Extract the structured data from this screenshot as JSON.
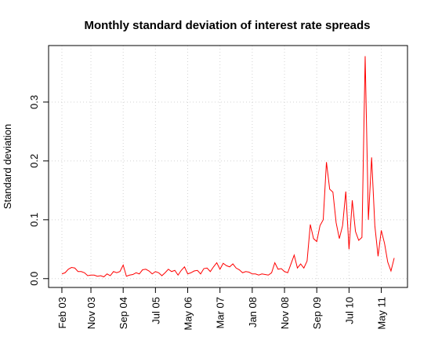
{
  "chart_data": {
    "type": "line",
    "title": "Monthly standard deviation of interest rate spreads",
    "ylabel": "Standard deviation",
    "categories": [
      "Feb 03",
      null,
      null,
      null,
      null,
      null,
      null,
      null,
      null,
      "Nov 03",
      null,
      null,
      null,
      null,
      null,
      null,
      null,
      null,
      null,
      "Sep 04",
      null,
      null,
      null,
      null,
      null,
      null,
      null,
      null,
      null,
      "Jul 05",
      null,
      null,
      null,
      null,
      null,
      null,
      null,
      null,
      null,
      "May 06",
      null,
      null,
      null,
      null,
      null,
      null,
      null,
      null,
      null,
      "Mar 07",
      null,
      null,
      null,
      null,
      null,
      null,
      null,
      null,
      null,
      "Jan 08",
      null,
      null,
      null,
      null,
      null,
      null,
      null,
      null,
      null,
      "Nov 08",
      null,
      null,
      null,
      null,
      null,
      null,
      null,
      null,
      null,
      "Sep 09",
      null,
      null,
      null,
      null,
      null,
      null,
      null,
      null,
      null,
      "Jul 10",
      null,
      null,
      null,
      null,
      null,
      null,
      null,
      null,
      null,
      "May 11",
      null,
      null,
      null,
      null
    ],
    "values": [
      0.008,
      0.01,
      0.016,
      0.019,
      0.018,
      0.012,
      0.012,
      0.01,
      0.005,
      0.006,
      0.006,
      0.004,
      0.005,
      0.003,
      0.008,
      0.005,
      0.012,
      0.01,
      0.012,
      0.023,
      0.004,
      0.006,
      0.007,
      0.01,
      0.008,
      0.015,
      0.016,
      0.013,
      0.008,
      0.012,
      0.01,
      0.005,
      0.01,
      0.016,
      0.012,
      0.014,
      0.006,
      0.014,
      0.02,
      0.008,
      0.01,
      0.013,
      0.014,
      0.008,
      0.017,
      0.018,
      0.012,
      0.02,
      0.027,
      0.016,
      0.026,
      0.022,
      0.02,
      0.025,
      0.018,
      0.015,
      0.01,
      0.012,
      0.011,
      0.008,
      0.008,
      0.006,
      0.008,
      0.007,
      0.006,
      0.01,
      0.027,
      0.016,
      0.017,
      0.012,
      0.01,
      0.025,
      0.04,
      0.018,
      0.025,
      0.018,
      0.03,
      0.092,
      0.068,
      0.063,
      0.09,
      0.1,
      0.198,
      0.152,
      0.147,
      0.095,
      0.068,
      0.09,
      0.148,
      0.05,
      0.133,
      0.08,
      0.065,
      0.07,
      0.378,
      0.1,
      0.206,
      0.09,
      0.038,
      0.082,
      0.06,
      0.028,
      0.013,
      0.035
    ],
    "color": "#ff0000",
    "ylim": [
      -0.015,
      0.396
    ],
    "yticks": [
      {
        "value": 0,
        "label": "0.0"
      },
      0.1,
      0.2,
      0.3
    ],
    "grid": true
  }
}
